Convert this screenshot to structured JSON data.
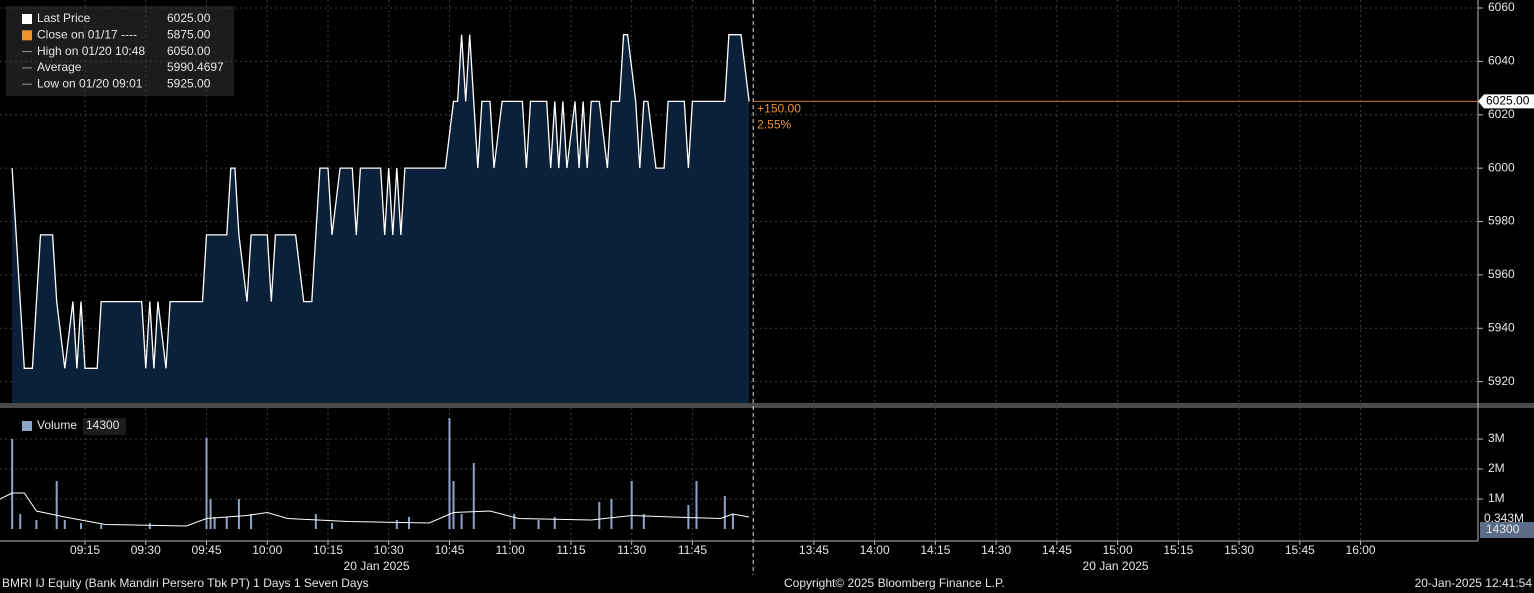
{
  "chart_data": [
    {
      "type": "area",
      "legend": [
        {
          "label": "Last Price",
          "value": "6025.00",
          "color": "#ffffff"
        },
        {
          "label": "Close on 01/17 ----",
          "value": "5875.00",
          "color": "#f0922b"
        },
        {
          "label": "High on 01/20 10:48",
          "value": "6050.00",
          "color": "#9a9a9a"
        },
        {
          "label": "Average",
          "value": "5990.4697",
          "color": "#9a9a9a"
        },
        {
          "label": "Low on 01/20 09:01",
          "value": "5925.00",
          "color": "#9a9a9a"
        }
      ],
      "x": [
        "08:57",
        "09:00",
        "09:02",
        "09:04",
        "09:07",
        "09:08",
        "09:10",
        "09:12",
        "09:13",
        "09:14",
        "09:15",
        "09:18",
        "09:19",
        "09:29",
        "09:30",
        "09:31",
        "09:32",
        "09:33",
        "09:35",
        "09:36",
        "09:44",
        "09:45",
        "09:50",
        "09:51",
        "09:52",
        "09:53",
        "09:55",
        "09:56",
        "10:00",
        "10:01",
        "10:02",
        "10:07",
        "10:09",
        "10:11",
        "10:12",
        "10:13",
        "10:15",
        "10:16",
        "10:18",
        "10:21",
        "10:22",
        "10:23",
        "10:28",
        "10:29",
        "10:30",
        "10:31",
        "10:32",
        "10:33",
        "10:34",
        "10:44",
        "10:46",
        "10:47",
        "10:48",
        "10:49",
        "10:50",
        "10:52",
        "10:53",
        "10:55",
        "10:56",
        "10:58",
        "11:03",
        "11:04",
        "11:05",
        "11:09",
        "11:10",
        "11:11",
        "11:12",
        "11:13",
        "11:14",
        "11:16",
        "11:17",
        "11:18",
        "11:19",
        "11:20",
        "11:22",
        "11:24",
        "11:25",
        "11:27",
        "11:28",
        "11:29",
        "11:31",
        "11:32",
        "11:33",
        "11:34",
        "11:36",
        "11:38",
        "11:39",
        "11:43",
        "11:44",
        "11:45",
        "11:53",
        "11:54",
        "11:57",
        "11:59"
      ],
      "series": [
        {
          "color": "#ffffff",
          "fill": "#0b2039",
          "values": [
            6000,
            5925,
            5925,
            5975,
            5975,
            5950,
            5925,
            5950,
            5925,
            5950,
            5925,
            5925,
            5950,
            5950,
            5925,
            5950,
            5925,
            5950,
            5925,
            5950,
            5950,
            5975,
            5975,
            6000,
            6000,
            5975,
            5950,
            5975,
            5975,
            5950,
            5975,
            5975,
            5950,
            5950,
            5975,
            6000,
            6000,
            5975,
            6000,
            6000,
            5975,
            6000,
            6000,
            5975,
            6000,
            5975,
            6000,
            5975,
            6000,
            6000,
            6025,
            6025,
            6050,
            6025,
            6050,
            6000,
            6025,
            6025,
            6000,
            6025,
            6025,
            6000,
            6025,
            6025,
            6000,
            6025,
            6000,
            6025,
            6000,
            6025,
            6000,
            6025,
            6000,
            6025,
            6025,
            6000,
            6025,
            6025,
            6050,
            6050,
            6025,
            6000,
            6025,
            6025,
            6000,
            6000,
            6025,
            6025,
            6000,
            6025,
            6025,
            6050,
            6050,
            6025
          ]
        }
      ],
      "xlim": [
        "08:54",
        "16:29"
      ],
      "xbreak": [
        "12:00",
        "13:30"
      ],
      "xticks": [
        "09:15",
        "09:30",
        "09:45",
        "10:00",
        "10:15",
        "10:30",
        "10:45",
        "11:00",
        "11:15",
        "11:30",
        "11:45",
        "13:45",
        "14:00",
        "14:15",
        "14:30",
        "14:45",
        "15:00",
        "15:15",
        "15:30",
        "15:45",
        "16:00"
      ],
      "date_label": "20 Jan 2025",
      "ylim": [
        5912,
        6063
      ],
      "yticks": [
        5920,
        5940,
        5960,
        5980,
        6000,
        6020,
        6040,
        6060
      ],
      "grid": true,
      "last_price": {
        "value": 6025,
        "label": "6025.00"
      },
      "last_price_color": "#c9754a",
      "annotations": [
        "+150.00",
        "2.55%"
      ],
      "annotation_color": "#e8913a"
    },
    {
      "type": "bar",
      "legend": {
        "label": "Volume",
        "value": 14300,
        "color": "#8da4c8"
      },
      "x": [
        "08:57",
        "08:59",
        "09:03",
        "09:08",
        "09:10",
        "09:14",
        "09:19",
        "09:31",
        "09:45",
        "09:46",
        "09:47",
        "09:50",
        "09:53",
        "09:56",
        "10:12",
        "10:16",
        "10:32",
        "10:35",
        "10:45",
        "10:46",
        "10:48",
        "10:51",
        "11:01",
        "11:07",
        "11:11",
        "11:22",
        "11:25",
        "11:30",
        "11:33",
        "11:44",
        "11:46",
        "11:53",
        "11:55"
      ],
      "series": [
        {
          "color": "#8da4c8",
          "values": [
            3000000,
            500000,
            300000,
            1600000,
            300000,
            200000,
            150000,
            200000,
            3050000,
            1000000,
            400000,
            400000,
            1000000,
            500000,
            500000,
            200000,
            300000,
            400000,
            3700000,
            1600000,
            500000,
            2200000,
            500000,
            300000,
            400000,
            900000,
            1000000,
            1600000,
            500000,
            800000,
            1600000,
            1100000,
            500000
          ]
        }
      ],
      "average": {
        "color": "#ffffff",
        "x": [
          "08:54",
          "08:57",
          "09:00",
          "09:03",
          "09:10",
          "09:20",
          "09:40",
          "09:45",
          "09:55",
          "10:00",
          "10:05",
          "10:20",
          "10:40",
          "10:46",
          "10:55",
          "11:02",
          "11:20",
          "11:30",
          "11:40",
          "11:52",
          "11:55",
          "11:59"
        ],
        "values": [
          1000000,
          1200000,
          1200000,
          600000,
          400000,
          150000,
          100000,
          350000,
          450000,
          550000,
          350000,
          250000,
          200000,
          550000,
          600000,
          350000,
          300000,
          450000,
          400000,
          350000,
          500000,
          400000
        ]
      },
      "ylim": [
        -400000,
        3970000
      ],
      "yticks": [
        {
          "value": 1000000,
          "label": "1M"
        },
        {
          "value": 2000000,
          "label": "2M"
        },
        {
          "value": 3000000,
          "label": "3M"
        }
      ],
      "grid": true,
      "last_value": {
        "value": 343000,
        "label": "0.343M"
      }
    }
  ],
  "footer": {
    "left": "BMRI IJ Equity (Bank Mandiri Persero Tbk PT) 1 Days 1 Seven Days",
    "center": "Copyright© 2025 Bloomberg Finance L.P.",
    "right": "20-Jan-2025 12:41:54"
  }
}
